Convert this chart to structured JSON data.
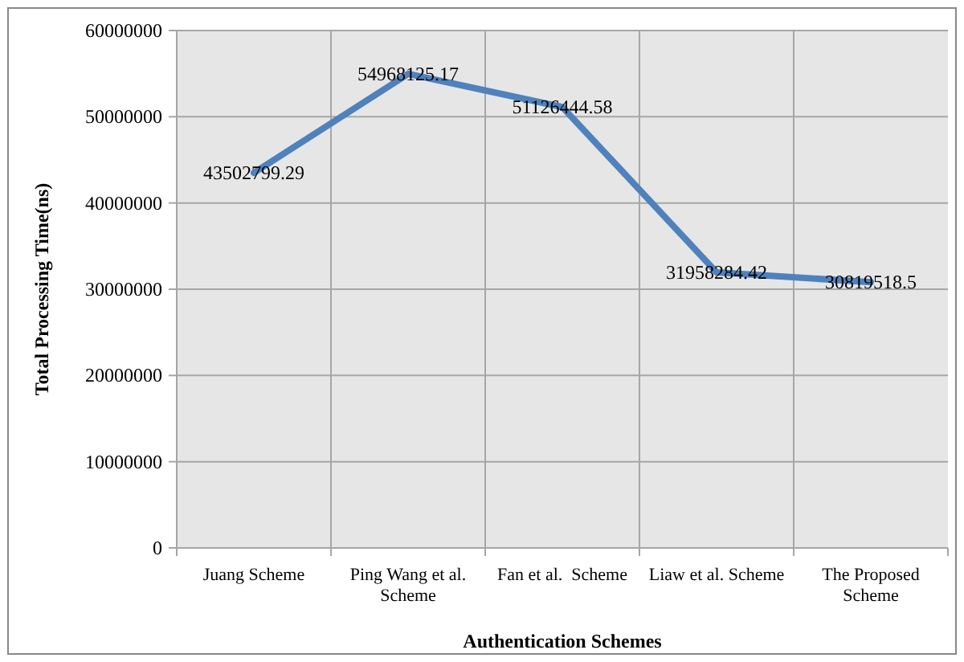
{
  "chart_data": {
    "type": "line",
    "xlabel": "Authentication Schemes",
    "ylabel": "Total Processing Time(ns)",
    "categories": [
      "Juang Scheme",
      "Ping Wang et al. Scheme",
      "Fan et al.  Scheme",
      "Liaw et al. Scheme",
      "The Proposed Scheme"
    ],
    "series": [
      {
        "color": "#4f81bd",
        "values": [
          43502799.29,
          54968125.17,
          51126444.58,
          31958284.42,
          30819518.5
        ]
      }
    ],
    "ylim": [
      0,
      60000000
    ],
    "yticks": [
      0,
      10000000,
      20000000,
      30000000,
      40000000,
      50000000,
      60000000
    ],
    "grid": true,
    "data_labels": true,
    "marker": "none",
    "line_style": "solid"
  }
}
